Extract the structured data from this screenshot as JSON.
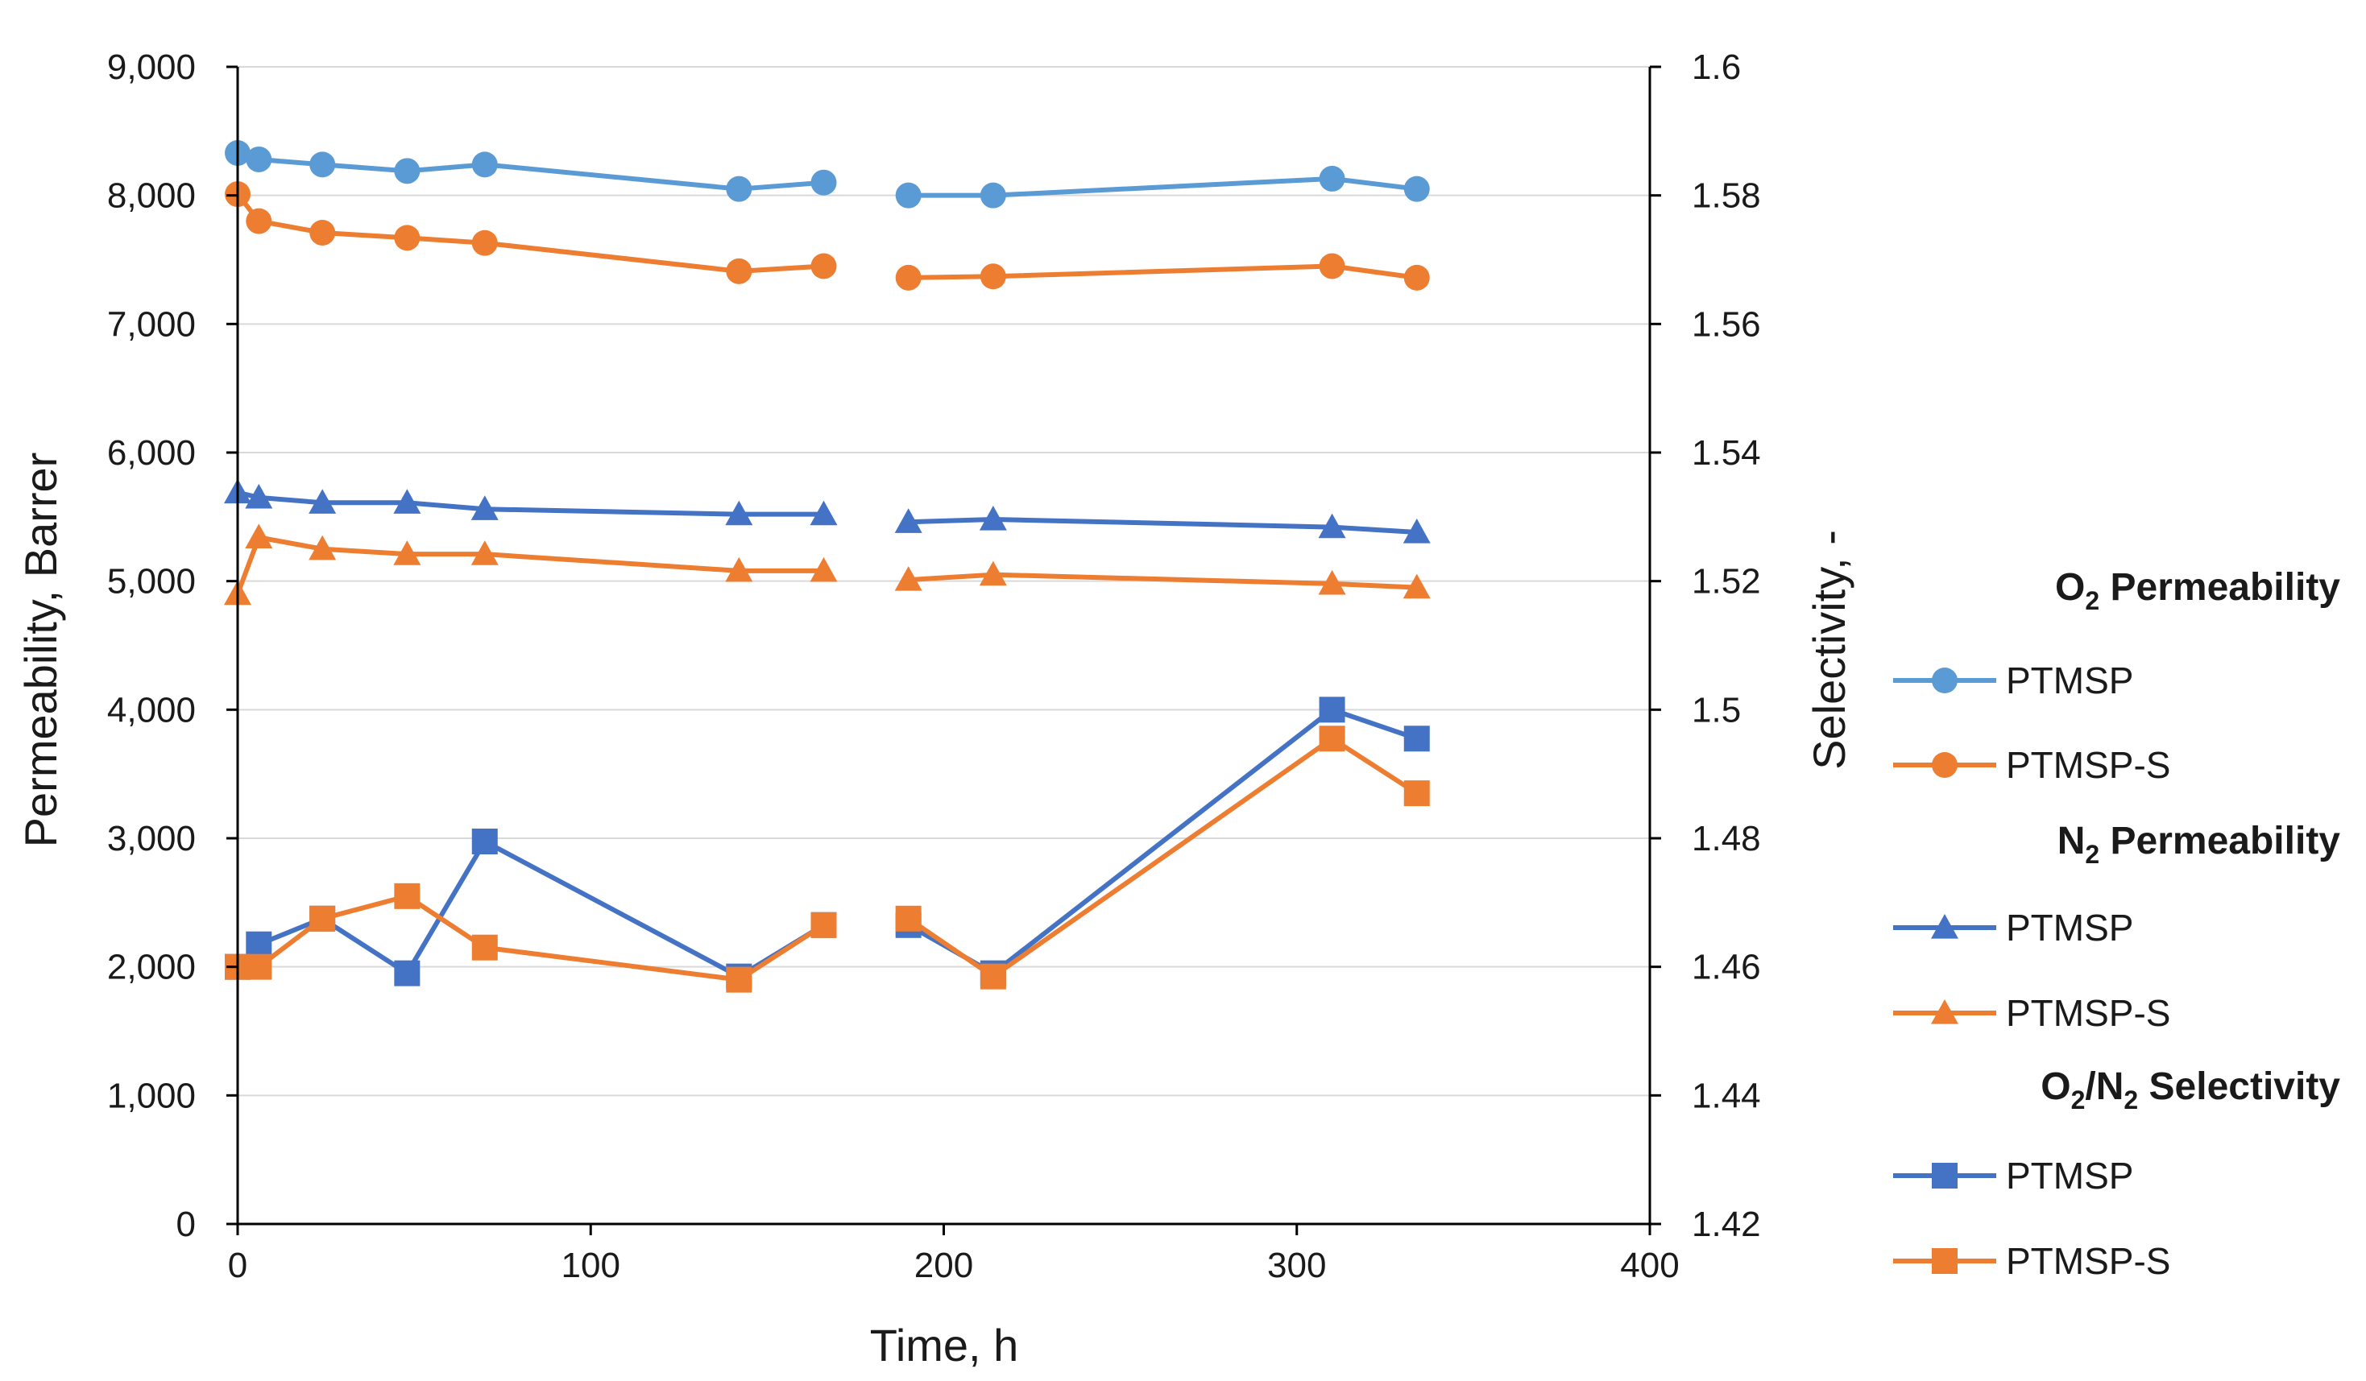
{
  "chart_data": {
    "type": "line",
    "title": "",
    "xlabel": "Time, h",
    "ylabel_left": "Permeability, Barrer",
    "ylabel_right": "Selectivity, -",
    "xlim": [
      0,
      400
    ],
    "ylim_left": [
      0,
      9000
    ],
    "ylim_right": [
      1.42,
      1.6
    ],
    "x_ticks": [
      0,
      100,
      200,
      300,
      400
    ],
    "x_tick_labels": [
      "0",
      "100",
      "200",
      "300",
      "400"
    ],
    "y_left_ticks": [
      0,
      1000,
      2000,
      3000,
      4000,
      5000,
      6000,
      7000,
      8000,
      9000
    ],
    "y_left_tick_labels": [
      "0",
      "1,000",
      "2,000",
      "3,000",
      "4,000",
      "5,000",
      "6,000",
      "7,000",
      "8,000",
      "9,000"
    ],
    "y_right_ticks": [
      1.42,
      1.44,
      1.46,
      1.48,
      1.5,
      1.52,
      1.54,
      1.56,
      1.58,
      1.6
    ],
    "y_right_tick_labels": [
      "1.42",
      "1.44",
      "1.46",
      "1.48",
      "1.5",
      "1.52",
      "1.54",
      "1.56",
      "1.58",
      "1.6"
    ],
    "grid": true,
    "legend_position": "right",
    "legend_groups": [
      {
        "title_parts": [
          {
            "t": "O"
          },
          {
            "t": "2",
            "sub": true
          },
          {
            "t": " Permeability"
          }
        ],
        "entries": [
          "PTMSP",
          "PTMSP-S"
        ],
        "marker": "circle"
      },
      {
        "title_parts": [
          {
            "t": "N"
          },
          {
            "t": "2",
            "sub": true
          },
          {
            "t": " Permeability"
          }
        ],
        "entries": [
          "PTMSP",
          "PTMSP-S"
        ],
        "marker": "triangle"
      },
      {
        "title_parts": [
          {
            "t": "O"
          },
          {
            "t": "2",
            "sub": true
          },
          {
            "t": "/N"
          },
          {
            "t": "2",
            "sub": true
          },
          {
            "t": " Selectivity"
          }
        ],
        "entries": [
          "PTMSP",
          "PTMSP-S"
        ],
        "marker": "square"
      }
    ],
    "series": [
      {
        "name": "PTMSP",
        "group": "O2 Permeability",
        "axis": "left",
        "marker": "circle",
        "color": "#5B9BD5",
        "segments": [
          {
            "x": [
              0,
              6,
              24,
              48,
              70,
              142,
              166
            ],
            "y": [
              8330,
              8280,
              8240,
              8190,
              8240,
              8050,
              8100
            ]
          },
          {
            "x": [
              190,
              214,
              310,
              334
            ],
            "y": [
              8000,
              8000,
              8130,
              8050
            ]
          }
        ]
      },
      {
        "name": "PTMSP-S",
        "group": "O2 Permeability",
        "axis": "left",
        "marker": "circle",
        "color": "#ED7D31",
        "segments": [
          {
            "x": [
              0,
              6,
              24,
              48,
              70,
              142,
              166
            ],
            "y": [
              8010,
              7800,
              7710,
              7670,
              7630,
              7410,
              7450
            ]
          },
          {
            "x": [
              190,
              214,
              310,
              334
            ],
            "y": [
              7360,
              7370,
              7450,
              7360
            ]
          }
        ]
      },
      {
        "name": "PTMSP",
        "group": "N2 Permeability",
        "axis": "left",
        "marker": "triangle",
        "color": "#4472C4",
        "segments": [
          {
            "x": [
              0,
              6,
              24,
              48,
              70,
              142,
              166
            ],
            "y": [
              5690,
              5650,
              5610,
              5610,
              5560,
              5520,
              5520
            ]
          },
          {
            "x": [
              190,
              214,
              310,
              334
            ],
            "y": [
              5460,
              5480,
              5420,
              5380
            ]
          }
        ]
      },
      {
        "name": "PTMSP-S",
        "group": "N2 Permeability",
        "axis": "left",
        "marker": "triangle",
        "color": "#ED7D31",
        "segments": [
          {
            "x": [
              0,
              6,
              24,
              48,
              70,
              142,
              166
            ],
            "y": [
              4900,
              5340,
              5250,
              5210,
              5210,
              5080,
              5080
            ]
          },
          {
            "x": [
              190,
              214,
              310,
              334
            ],
            "y": [
              5010,
              5050,
              4980,
              4950
            ]
          }
        ]
      },
      {
        "name": "PTMSP",
        "group": "O2/N2 Selectivity",
        "axis": "right",
        "marker": "square",
        "color": "#4472C4",
        "segments": [
          {
            "x": [
              0,
              6,
              24,
              48,
              70,
              142,
              166
            ],
            "y": [
              1.46,
              1.4635,
              1.4675,
              1.459,
              1.4795,
              1.4585,
              1.4665
            ]
          },
          {
            "x": [
              190,
              214,
              310,
              334
            ],
            "y": [
              1.4665,
              1.459,
              1.5,
              1.4955
            ]
          }
        ]
      },
      {
        "name": "PTMSP-S",
        "group": "O2/N2 Selectivity",
        "axis": "right",
        "marker": "square",
        "color": "#ED7D31",
        "segments": [
          {
            "x": [
              0,
              6,
              24,
              48,
              70,
              142,
              166
            ],
            "y": [
              1.46,
              1.46,
              1.4675,
              1.471,
              1.463,
              1.458,
              1.4665
            ]
          },
          {
            "x": [
              190,
              214,
              310,
              334
            ],
            "y": [
              1.4675,
              1.4585,
              1.4955,
              1.487
            ]
          }
        ]
      }
    ]
  }
}
